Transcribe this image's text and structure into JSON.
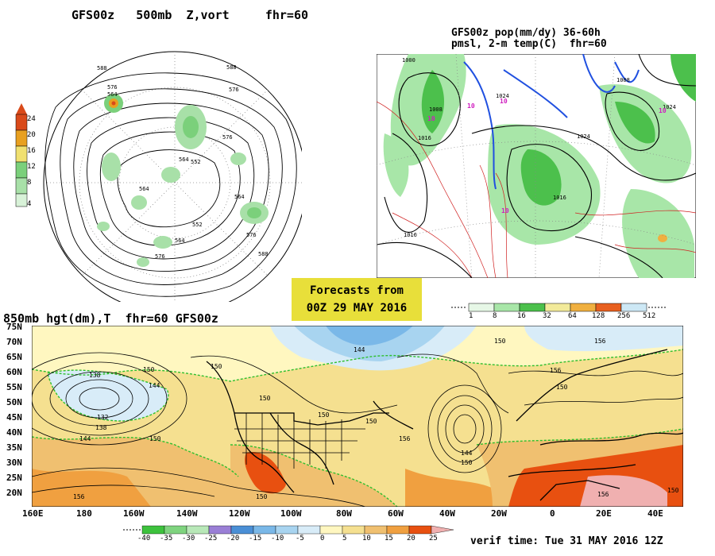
{
  "panels": {
    "top_left": {
      "title": "GFS00z   500mb  Z,vort     fhr=60",
      "colorbar": {
        "labels": [
          "24",
          "20",
          "16",
          "12",
          "8",
          "4"
        ],
        "colors": [
          "#d94a1a",
          "#e8a020",
          "#f0e070",
          "#7bd07b",
          "#a8e0a8",
          "#d8f2d8"
        ]
      },
      "contour_labels": [
        "588",
        "576",
        "564",
        "588",
        "576",
        "576",
        "564",
        "552",
        "564",
        "552",
        "564",
        "576",
        "576",
        "588",
        "564"
      ]
    },
    "top_right": {
      "title_line1": "GFS00z pop(mm/dy) 36-60h",
      "title_line2": "pmsl, 2-m temp(C)  fhr=60",
      "colorbar": {
        "labels": [
          "1",
          "8",
          "16",
          "32",
          "64",
          "128",
          "256",
          "512"
        ],
        "colors": [
          "#e6f7e6",
          "#a8e6a8",
          "#4cc04c",
          "#f2ea9a",
          "#f0b040",
          "#e86020",
          "#cde8f5"
        ]
      },
      "isobar_labels": [
        "1000",
        "1008",
        "1016",
        "1024",
        "1024",
        "1008",
        "1016",
        "1024",
        "1016"
      ],
      "temp_labels": [
        "10",
        "10",
        "10",
        "10",
        "10"
      ]
    },
    "center_box": {
      "line1": "Forecasts from",
      "line2": "00Z 29 MAY 2016"
    },
    "bottom": {
      "title": "850mb hgt(dm),T  fhr=60 GFS00z",
      "lat_labels": [
        "75N",
        "70N",
        "65N",
        "60N",
        "55N",
        "50N",
        "45N",
        "40N",
        "35N",
        "30N",
        "25N",
        "20N"
      ],
      "lon_labels": [
        "160E",
        "180",
        "160W",
        "140W",
        "120W",
        "100W",
        "80W",
        "60W",
        "40W",
        "20W",
        "0",
        "20E",
        "40E"
      ],
      "contour_labels": [
        "150",
        "138",
        "144",
        "132",
        "138",
        "144",
        "150",
        "150",
        "150",
        "150",
        "144",
        "150",
        "156",
        "144",
        "150",
        "150",
        "156",
        "156",
        "150",
        "156",
        "150",
        "156",
        "150"
      ],
      "colorbar": {
        "labels": [
          "-40",
          "-35",
          "-30",
          "-25",
          "-20",
          "-15",
          "-10",
          "-5",
          "0",
          "5",
          "10",
          "15",
          "20",
          "25"
        ],
        "colors": [
          "#3dc23d",
          "#7fd47f",
          "#b8e8b8",
          "#9a7fd6",
          "#4a8fd6",
          "#7ab8e8",
          "#a8d4f0",
          "#d8ecf8",
          "#fff7c0",
          "#f5e090",
          "#f0c070",
          "#f0a040",
          "#e85010",
          "#f0b0b0"
        ]
      },
      "verif_time": "verif time: Tue 31 MAY 2016 12Z"
    }
  }
}
